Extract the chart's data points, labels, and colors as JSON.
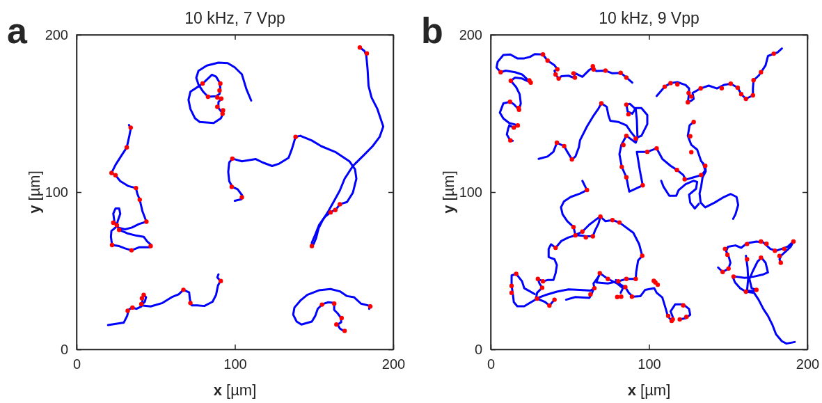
{
  "chart_data": [
    {
      "type": "line",
      "title": "10 kHz, 7 Vpp",
      "xlabel": "x [µm]",
      "ylabel": "y [µm]",
      "annotations": [
        "a"
      ],
      "xlim": [
        0,
        200
      ],
      "ylim": [
        0,
        200
      ],
      "xticks": [
        0,
        100,
        200
      ],
      "yticks": [
        0,
        100,
        200
      ],
      "line_style": "solid",
      "series": [
        {
          "color": "#0000ff",
          "x": [
            110.3,
            107.3,
            104.4,
            99.9,
            95.5,
            89.6,
            82.2,
            77.0,
            75.6,
            77.0,
            80.0,
            83.0,
            88.1,
            90.3,
            90.8,
            90.3,
            88.1,
            85.5,
            83.0,
            79.6,
            75.6,
            71.9,
            70.7,
            71.9,
            74.8,
            77.8,
            86.6,
            91.1,
            92.5,
            89.6,
            89.6,
            91.4
          ],
          "values": [
            158.2,
            165.3,
            174.9,
            179.3,
            182.0,
            182.3,
            180.4,
            177.1,
            172.7,
            168.3,
            163.8,
            160.6,
            160.9,
            162.4,
            166.1,
            169.7,
            173.4,
            174.6,
            172.2,
            169.0,
            166.3,
            163.8,
            158.7,
            152.8,
            146.9,
            144.6,
            143.9,
            146.9,
            149.8,
            153.5,
            157.2,
            159.4
          ]
        },
        {
          "color": "#0000ff",
          "x": [
            33.1,
            34.2,
            33.2,
            31.7,
            28.3,
            24.6,
            22.1,
            24.6,
            27.6,
            32.8,
            37.5,
            38.4,
            39.9,
            41.6,
            44.1,
            39.4,
            35.0,
            30.6,
            26.1,
            23.9,
            23.2,
            24.6,
            26.9,
            27.6,
            26.1,
            25.4,
            27.6,
            32.0,
            37.9,
            42.4,
            44.6,
            47.1,
            46.0,
            39.4,
            34.7,
            30.6,
            26.9,
            22.4,
            21.7,
            22.0,
            24.6
          ],
          "values": [
            142.7,
            140.2,
            135.1,
            128.4,
            123.2,
            117.3,
            112.2,
            110.7,
            107.0,
            103.8,
            102.6,
            98.9,
            95.2,
            87.8,
            81.2,
            79.7,
            77.5,
            76.3,
            77.5,
            81.2,
            86.3,
            89.6,
            89.6,
            86.3,
            81.9,
            79.0,
            75.7,
            73.8,
            72.3,
            71.6,
            68.6,
            66.4,
            64.9,
            64.9,
            63.0,
            64.2,
            65.7,
            66.4,
            71.6,
            75.3,
            77.5
          ]
        },
        {
          "color": "#0000ff",
          "x": [
            99.9,
            104.1,
            104.6,
            101.7,
            98.4,
            96.4,
            95.8,
            96.4,
            98.4,
            104.4,
            113.2,
            117.6,
            123.5,
            128.0,
            133.9,
            136.1,
            138.3,
            141.3,
            148.6,
            154.5,
            163.4,
            172.3,
            175.9,
            176.7,
            174.5,
            170.8,
            166.3,
            164.1,
            160.4,
            156.7,
            153.1,
            150.8,
            148.6,
            148.6
          ],
          "values": [
            94.5,
            95.5,
            97.9,
            101.8,
            103.3,
            107.0,
            112.9,
            118.8,
            121.3,
            119.6,
            121.0,
            118.8,
            116.6,
            118.1,
            121.8,
            127.7,
            135.1,
            135.8,
            132.8,
            129.2,
            125.5,
            119.6,
            114.4,
            108.5,
            99.6,
            93.7,
            92.3,
            89.3,
            87.1,
            84.1,
            79.0,
            73.1,
            67.9,
            65.4
          ]
        },
        {
          "color": "#0000ff",
          "x": [
            148.6,
            149.8,
            151.3,
            152.8,
            155.3,
            159.0,
            162.7,
            166.3,
            169.3,
            174.5,
            181.1,
            187.0,
            191.4,
            193.7,
            190.0,
            186.3,
            184.4,
            183.8,
            183.0,
            181.8,
            178.9
          ],
          "values": [
            65.4,
            67.2,
            70.8,
            76.8,
            81.9,
            87.8,
            94.5,
            101.1,
            108.5,
            116.6,
            123.2,
            129.2,
            135.1,
            141.7,
            152.8,
            160.1,
            167.5,
            177.9,
            186.7,
            189.7,
            191.9
          ]
        },
        {
          "color": "#0000ff",
          "x": [
            19.9,
            29.8,
            32.0,
            32.8,
            35.0,
            37.9,
            40.9,
            41.6,
            42.4,
            43.9,
            43.1,
            40.9,
            46.8,
            54.2,
            60.1,
            64.5,
            67.5,
            71.1,
            71.6,
            72.6,
            76.3,
            80.7,
            85.9,
            88.1,
            89.3,
            90.8,
            88.9,
            89.6
          ],
          "values": [
            15.5,
            17.0,
            21.4,
            25.1,
            26.6,
            25.8,
            27.3,
            31.0,
            34.7,
            33.2,
            30.3,
            28.0,
            27.3,
            29.5,
            33.2,
            35.0,
            37.9,
            36.2,
            31.7,
            28.0,
            28.0,
            27.6,
            30.3,
            34.7,
            40.6,
            43.5,
            45.8,
            47.7
          ]
        },
        {
          "color": "#0000ff",
          "x": [
            184.8,
            185.5,
            179.6,
            175.2,
            170.8,
            166.3,
            160.4,
            153.1,
            145.7,
            141.3,
            137.6,
            136.8,
            139.0,
            142.0,
            148.6,
            150.8,
            152.3,
            155.3,
            159.0,
            162.7,
            162.7,
            164.9,
            167.1,
            167.1,
            164.9,
            166.3,
            169.3
          ],
          "values": [
            25.8,
            27.6,
            29.1,
            33.2,
            33.9,
            36.9,
            38.4,
            37.6,
            34.7,
            31.0,
            26.6,
            22.1,
            17.7,
            15.8,
            17.7,
            21.4,
            25.8,
            28.8,
            30.0,
            29.5,
            25.1,
            22.9,
            19.9,
            17.3,
            15.8,
            13.3,
            11.4
          ]
        },
        {
          "type": "scatter",
          "marker": "circle",
          "color": "#ff0000",
          "x": [
            79.6,
            83.0,
            90.8,
            90.3,
            88.9,
            91.4,
            88.9,
            92.5,
            92.2,
            34.2,
            31.7,
            22.1,
            24.6,
            37.5,
            39.9,
            44.1,
            23.2,
            25.4,
            26.9,
            46.8,
            34.7,
            22.4,
            98.4,
            98.0,
            104.4,
            138.3,
            166.3,
            163.4,
            160.4,
            148.6,
            178.9,
            183.3,
            32.3,
            35.3,
            40.9,
            41.3,
            42.4,
            67.5,
            71.9,
            91.1,
            185.5,
            155.0,
            162.7,
            167.4,
            164.1,
            169.3
          ],
          "values": [
            169.0,
            160.6,
            169.0,
            164.6,
            160.2,
            159.4,
            154.2,
            152.0,
            149.8,
            141.0,
            128.4,
            112.2,
            110.7,
            102.6,
            95.2,
            81.2,
            80.5,
            79.0,
            76.0,
            65.7,
            63.0,
            66.4,
            121.3,
            103.3,
            96.7,
            135.1,
            92.3,
            88.6,
            87.1,
            65.7,
            191.9,
            188.2,
            24.6,
            26.6,
            28.8,
            32.5,
            34.7,
            37.9,
            29.5,
            43.5,
            27.3,
            28.5,
            29.1,
            19.9,
            15.8,
            11.8
          ]
        }
      ]
    },
    {
      "type": "line",
      "title": "10 kHz, 9 Vpp",
      "xlabel": "x [µm]",
      "ylabel": "y [µm]",
      "annotations": [
        "b"
      ],
      "xlim": [
        0,
        200
      ],
      "ylim": [
        0,
        200
      ],
      "xticks": [
        0,
        100,
        200
      ],
      "yticks": [
        0,
        100,
        200
      ],
      "line_style": "solid",
      "series": [
        {
          "color": "#0000ff",
          "x": [
            89.4,
            85.7,
            82.1,
            76.9,
            72.5,
            66.7,
            64.5,
            62.3,
            57.9,
            53.5,
            52.3,
            49.1,
            44.7,
            42.9,
            41.0,
            40.3,
            42.1,
            40.3,
            35.9,
            33.0,
            27.8,
            24.9,
            21.2,
            16.8,
            12.4,
            8.0,
            4.4,
            3.7,
            6.3,
            9.5,
            15.4,
            19.8,
            23.4,
            25.3,
            19.8,
            15.4,
            12.7,
            16.1,
            18.3,
            19.0,
            17.9,
            14.6,
            12.2,
            8.0,
            5.8,
            8.0,
            11.7,
            14.6,
            17.1,
            14.6,
            11.7,
            11.0,
            10.2,
            12.4,
            13.9
          ],
          "values": [
            169.6,
            172.8,
            175.8,
            175.5,
            177.2,
            177.0,
            178.7,
            177.7,
            173.3,
            175.5,
            172.8,
            174.0,
            173.7,
            172.2,
            174.8,
            177.2,
            178.1,
            180.6,
            183.6,
            187.5,
            187.7,
            186.0,
            185.0,
            185.0,
            187.5,
            187.2,
            182.8,
            179.2,
            176.2,
            177.2,
            176.2,
            174.8,
            171.4,
            169.6,
            172.2,
            172.8,
            170.8,
            166.7,
            162.2,
            156.4,
            152.3,
            155.9,
            157.4,
            156.4,
            150.5,
            146.8,
            143.9,
            143.2,
            142.4,
            141.0,
            142.4,
            140.2,
            136.6,
            132.9,
            132.6
          ]
        },
        {
          "color": "#0000ff",
          "x": [
            30.3,
            35.9,
            39.6,
            41.8,
            46.4,
            48.4,
            51.3,
            53.5,
            55.7,
            56.4,
            60.8,
            65.2,
            67.8,
            69.9,
            73.3,
            74.3,
            75.5,
            80.6,
            85.7,
            88.7,
            91.6,
            95.2,
            98.9,
            98.9,
            95.2,
            91.6,
            89.4,
            86.5,
            85.7,
            87.9,
            91.6,
            92.3,
            92.7,
            91.6,
            85.7,
            82.5,
            81.3,
            82.8,
            85.7,
            87.5,
            96.0,
            94.2,
            92.3,
            98.9,
            104.8,
            108.4,
            113.6,
            117.6,
            121.6,
            123.1,
            128.2,
            133.3,
            135.5,
            134.1
          ],
          "values": [
            121.1,
            122.6,
            125.6,
            131.4,
            129.2,
            125.6,
            120.8,
            122.6,
            128.5,
            132.9,
            141.7,
            149.0,
            152.7,
            156.4,
            154.2,
            149.0,
            145.4,
            144.6,
            142.4,
            138.0,
            134.4,
            135.8,
            143.2,
            149.0,
            153.4,
            153.4,
            149.8,
            151.2,
            155.6,
            156.1,
            152.7,
            146.1,
            134.4,
            131.4,
            135.8,
            130.0,
            124.1,
            116.0,
            109.4,
            100.3,
            104.3,
            113.8,
            125.6,
            125.6,
            127.8,
            121.1,
            116.7,
            114.1,
            110.9,
            107.9,
            109.4,
            110.9,
            113.8,
            118.2
          ]
        },
        {
          "color": "#0000ff",
          "x": [
            128.2,
            125.6,
            124.5,
            126.7,
            130.4,
            132.9,
            135.5,
            135.8,
            133.8,
            132.9,
            131.9,
            132.6,
            135.5,
            141.4,
            147.3,
            151.6,
            155.3,
            156.3,
            154.6,
            153.1
          ],
          "values": [
            144.6,
            142.4,
            135.8,
            130.0,
            127.0,
            119.7,
            116.7,
            113.1,
            109.4,
            103.5,
            99.1,
            93.3,
            90.3,
            93.3,
            96.9,
            98.8,
            96.9,
            91.8,
            85.9,
            83.0
          ]
        },
        {
          "color": "#0000ff",
          "x": [
            107.7,
            109.1,
            112.8,
            117.2,
            118.7,
            123.1,
            128.2,
            130.4,
            129.7,
            125.3,
            126.0,
            128.9,
            131.4
          ],
          "values": [
            107.2,
            103.5,
            97.7,
            97.7,
            101.3,
            105.0,
            107.2,
            106.5,
            102.1,
            98.4,
            93.3,
            89.6,
            92.5
          ]
        },
        {
          "color": "#0000ff",
          "x": [
            143.6,
            146.5,
            150.2,
            151.4,
            150.2,
            148.7,
            149.9,
            154.6,
            158.2,
            161.9,
            167.8,
            172.2,
            176.6,
            180.2,
            184.6,
            187.6,
            191.2,
            189.5,
            186.5,
            183.6,
            182.4,
            183.2
          ],
          "values": [
            52.1,
            49.2,
            51.4,
            55.1,
            59.5,
            62.4,
            65.3,
            66.1,
            64.6,
            67.5,
            68.6,
            68.0,
            63.9,
            62.7,
            64.2,
            65.3,
            68.6,
            65.3,
            62.4,
            59.8,
            57.3,
            55.1
          ]
        },
        {
          "color": "#0000ff",
          "x": [
            161.2,
            162.2,
            162.6,
            161.9,
            165.6,
            167.8,
            164.8,
            163.4,
            165.6,
            168.5,
            171.0,
            173.6,
            175.1,
            172.2,
            166.3,
            160.4,
            154.6,
            153.1,
            154.3,
            157.5,
            161.2,
            166.3,
            169.2,
            172.2,
            175.1,
            178.0,
            180.2,
            183.9,
            186.8,
            192.0
          ],
          "values": [
            59.5,
            52.1,
            44.8,
            37.4,
            37.1,
            37.8,
            38.9,
            44.8,
            49.9,
            55.8,
            58.3,
            55.1,
            48.9,
            47.7,
            46.3,
            45.5,
            46.3,
            45.5,
            42.6,
            38.9,
            36.7,
            36.0,
            31.6,
            25.7,
            21.3,
            15.4,
            9.6,
            5.2,
            3.7,
            4.7
          ]
        },
        {
          "color": "#0000ff",
          "x": [
            57.9,
            60.8,
            56.4,
            50.5,
            46.2,
            44.4,
            45.4,
            48.4,
            52.3,
            53.5,
            57.9,
            62.3,
            66.7,
            69.3,
            68.1,
            65.9,
            64.5,
            60.8,
            54.2,
            49.1,
            44.7,
            41.0,
            38.1,
            36.6,
            36.6,
            40.3,
            41.8,
            41.0,
            39.6,
            35.9,
            33.0,
            29.8,
            30.8,
            32.5,
            29.3,
            28.6,
            34.4,
            41.8,
            49.1,
            56.4,
            63.0,
            65.5,
            64.9,
            68.1,
            68.9,
            74.0,
            79.9,
            83.5,
            82.1
          ],
          "values": [
            107.2,
            101.3,
            99.1,
            96.9,
            94.0,
            90.3,
            85.9,
            81.5,
            77.8,
            72.7,
            74.9,
            79.3,
            82.7,
            84.4,
            80.0,
            75.6,
            71.9,
            71.9,
            72.7,
            71.2,
            69.0,
            64.6,
            66.8,
            63.9,
            58.7,
            57.3,
            53.6,
            48.5,
            44.1,
            44.1,
            43.3,
            44.8,
            41.9,
            39.2,
            36.0,
            32.3,
            34.5,
            36.7,
            38.2,
            37.8,
            37.4,
            38.9,
            41.9,
            46.3,
            48.5,
            44.8,
            41.9,
            38.9,
            36.0
          ]
        },
        {
          "color": "#0000ff",
          "x": [
            40.3,
            37.1,
            34.4,
            29.3,
            21.2,
            16.8,
            14.6,
            13.9,
            13.2,
            13.2,
            16.1,
            19.8,
            21.2,
            27.8
          ],
          "values": [
            31.6,
            27.9,
            30.1,
            32.3,
            27.4,
            27.4,
            30.1,
            36.0,
            40.4,
            47.0,
            48.0,
            43.3,
            38.9,
            35.2
          ]
        },
        {
          "color": "#0000ff",
          "x": [
            47.6,
            53.5,
            62.3,
            63.7,
            64.9
          ],
          "values": [
            31.6,
            33.3,
            32.7,
            35.2,
            38.2
          ]
        },
        {
          "color": "#0000ff",
          "x": [
            79.1,
            82.1,
            85.0,
            87.2,
            89.8,
            94.5,
            97.5,
            103.3,
            104.8,
            108.4,
            110.6,
            111.8,
            114.3,
            115.0,
            113.6,
            116.5,
            121.6,
            125.3,
            126.0,
            123.1,
            119.4
          ],
          "values": [
            44.1,
            41.1,
            39.6,
            36.0,
            33.5,
            33.8,
            37.8,
            38.9,
            36.0,
            33.0,
            25.7,
            21.3,
            18.1,
            20.6,
            24.2,
            28.6,
            28.6,
            25.7,
            22.0,
            19.8,
            19.1
          ]
        },
        {
          "color": "#0000ff",
          "x": [
            69.3,
            72.5,
            76.9,
            81.3,
            90.1,
            93.8,
            95.7,
            93.1,
            91.9,
            91.6,
            85.7,
            80.6,
            74.0,
            66.7,
            68.9
          ],
          "values": [
            84.4,
            81.5,
            82.2,
            80.7,
            74.1,
            66.8,
            59.5,
            56.5,
            49.2,
            44.8,
            44.8,
            43.3,
            41.9,
            42.6,
            48.5
          ]
        },
        {
          "color": "#0000ff",
          "x": [
            104.8,
            109.9,
            113.6,
            117.9,
            123.1,
            125.3,
            125.0,
            124.5,
            126.7,
            128.2,
            127.5,
            132.6,
            137.7,
            142.9,
            147.3,
            151.6,
            156.0,
            158.2,
            161.2,
            165.6,
            165.6,
            166.0,
            169.2,
            170.7,
            173.6,
            175.1,
            178.8,
            181.0,
            183.9
          ],
          "values": [
            161.1,
            167.0,
            169.3,
            169.9,
            168.1,
            165.9,
            160.8,
            157.1,
            158.1,
            159.3,
            163.0,
            165.9,
            167.7,
            165.9,
            168.1,
            168.9,
            166.4,
            162.3,
            159.3,
            161.5,
            165.9,
            171.1,
            174.0,
            176.2,
            180.6,
            186.5,
            188.0,
            188.7,
            191.3
          ]
        },
        {
          "type": "scatter",
          "marker": "circle",
          "color": "#ff0000",
          "x": [
            85.7,
            82.1,
            72.5,
            64.5,
            65.0,
            52.3,
            53.2,
            42.9,
            41.0,
            42.1,
            35.9,
            33.0,
            6.3,
            24.4,
            25.3,
            12.7,
            12.2,
            17.6,
            17.9,
            14.6,
            17.1,
            12.4,
            109.9,
            113.6,
            117.9,
            125.0,
            124.5,
            126.7,
            132.6,
            145.9,
            151.6,
            156.0,
            158.2,
            161.2,
            165.6,
            166.0,
            170.7,
            178.8,
            41.8,
            46.4,
            51.3,
            69.9,
            85.7,
            87.0,
            91.6,
            85.7,
            83.8,
            82.8,
            85.7,
            96.0,
            98.9,
            104.8,
            117.6,
            122.5,
            128.2,
            126.0,
            126.7,
            135.5,
            132.9,
            60.8,
            52.3,
            57.9,
            53.5,
            60.1,
            64.5,
            69.3,
            76.9,
            81.3,
            95.7,
            41.0,
            29.8,
            33.0,
            32.5,
            16.1,
            13.2,
            13.2,
            29.3,
            37.1,
            40.3,
            63.0,
            65.5,
            68.9,
            74.0,
            80.6,
            85.7,
            91.6,
            85.0,
            79.9,
            82.4,
            89.2,
            103.0,
            104.0,
            105.5,
            112.1,
            114.3,
            115.0,
            121.6,
            123.6,
            119.4,
            148.0,
            149.5,
            146.5,
            150.2,
            161.9,
            161.9,
            170.7,
            174.2,
            179.5,
            185.4,
            182.4,
            183.2,
            191.2,
            170.7,
            153.4,
            167.8,
            161.2
          ],
          "values": [
            172.8,
            175.8,
            177.2,
            180.0,
            178.0,
            175.5,
            172.8,
            172.2,
            174.8,
            178.1,
            183.6,
            187.5,
            176.2,
            171.0,
            169.6,
            170.8,
            157.4,
            153.6,
            152.3,
            141.0,
            142.4,
            132.9,
            167.0,
            169.3,
            168.5,
            163.0,
            157.1,
            160.8,
            165.9,
            166.0,
            168.9,
            166.4,
            162.3,
            159.3,
            161.5,
            171.1,
            176.2,
            188.0,
            131.4,
            129.2,
            120.8,
            156.4,
            155.6,
            149.5,
            134.0,
            135.8,
            130.0,
            116.0,
            109.4,
            104.3,
            125.6,
            127.8,
            114.1,
            108.2,
            144.6,
            135.5,
            125.4,
            116.7,
            110.9,
            101.3,
            77.8,
            74.9,
            72.5,
            71.2,
            71.9,
            84.4,
            82.2,
            80.7,
            59.5,
            64.6,
            44.8,
            43.3,
            39.2,
            48.0,
            40.4,
            36.0,
            32.3,
            27.9,
            31.6,
            35.0,
            38.9,
            48.5,
            44.8,
            43.3,
            44.8,
            44.8,
            39.6,
            33.3,
            33.5,
            33.5,
            43.6,
            42.6,
            41.1,
            21.3,
            18.1,
            19.1,
            28.0,
            20.7,
            19.1,
            63.9,
            60.2,
            49.2,
            51.4,
            57.3,
            67.0,
            68.6,
            67.2,
            62.7,
            63.9,
            59.4,
            55.1,
            68.6,
            58.3,
            46.3,
            37.8,
            36.7
          ]
        }
      ]
    }
  ]
}
